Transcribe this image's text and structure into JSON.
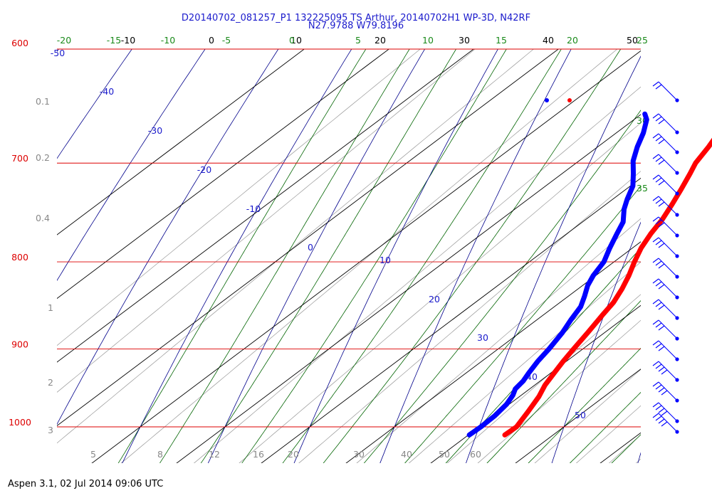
{
  "title_line1": "D20140702_081257_P1 132225095 TS Arthur, 20140702H1 WP-3D, N42RF",
  "title_line2": "N27.9788 W79.8196",
  "footer": "Aspen 3.1, 02 Jul 2014  09:06 UTC",
  "colors": {
    "isobar": "#dd0000",
    "isotherm": "#000000",
    "dry_adiabat": "#00008b",
    "moist_adiabat": "#006400",
    "mixing_ratio": "#9a9a9a",
    "dewpoint": "#0000ff",
    "temperature": "#ff0000",
    "isotherm_label": "#000000",
    "dry_label": "#1a1acc",
    "moist_label": "#1a8a1a",
    "mixing_label": "#888888"
  },
  "chart_data": {
    "type": "skew-t",
    "pressure_range_hpa": [
      600,
      1050
    ],
    "isobars_hpa": [
      600,
      700,
      800,
      900,
      1000
    ],
    "isobar_labels": [
      "600",
      "700",
      "800",
      "900",
      "1000"
    ],
    "isotherm_top_labels": [
      "-10",
      "0",
      "10",
      "20",
      "30",
      "40",
      "50"
    ],
    "moist_top_labels": [
      "-20",
      "-15",
      "-10",
      "-5",
      "0",
      "5",
      "10",
      "15",
      "20",
      "25"
    ],
    "moist_right_labels": [
      "30",
      "35"
    ],
    "dry_adiabat_labels": [
      "-50",
      "-40",
      "-30",
      "-20",
      "-10",
      "0",
      "10",
      "20",
      "30",
      "40",
      "50"
    ],
    "mixing_ratio_bottom_labels": [
      "5",
      "8",
      "12",
      "16",
      "20",
      "30",
      "40",
      "50",
      "60"
    ],
    "mixing_ratio_left_labels": [
      "0.1",
      "0.2",
      "0.4",
      "1",
      "2",
      "3"
    ],
    "temperature": [
      {
        "p": 1011,
        "t": 24.3
      },
      {
        "p": 1000,
        "t": 24.4
      },
      {
        "p": 980,
        "t": 23.4
      },
      {
        "p": 960,
        "t": 22.3
      },
      {
        "p": 945,
        "t": 21.2
      },
      {
        "p": 930,
        "t": 20.4
      },
      {
        "p": 915,
        "t": 19.6
      },
      {
        "p": 900,
        "t": 18.9
      },
      {
        "p": 880,
        "t": 18.0
      },
      {
        "p": 860,
        "t": 17.0
      },
      {
        "p": 845,
        "t": 16.3
      },
      {
        "p": 830,
        "t": 15.2
      },
      {
        "p": 815,
        "t": 13.9
      },
      {
        "p": 800,
        "t": 12.4
      },
      {
        "p": 785,
        "t": 11.0
      },
      {
        "p": 770,
        "t": 9.9
      },
      {
        "p": 755,
        "t": 9.0
      },
      {
        "p": 740,
        "t": 7.8
      },
      {
        "p": 725,
        "t": 6.5
      },
      {
        "p": 710,
        "t": 5.1
      },
      {
        "p": 700,
        "t": 4.1
      },
      {
        "p": 685,
        "t": 3.1
      },
      {
        "p": 670,
        "t": 1.9
      },
      {
        "p": 655,
        "t": 0.6
      }
    ],
    "dewpoint": [
      {
        "p": 1011,
        "t": 20.1
      },
      {
        "p": 1000,
        "t": 20.2
      },
      {
        "p": 985,
        "t": 20.1
      },
      {
        "p": 970,
        "t": 19.7
      },
      {
        "p": 958,
        "t": 19.0
      },
      {
        "p": 950,
        "t": 18.3
      },
      {
        "p": 940,
        "t": 18.0
      },
      {
        "p": 930,
        "t": 17.4
      },
      {
        "p": 915,
        "t": 16.6
      },
      {
        "p": 900,
        "t": 16.0
      },
      {
        "p": 880,
        "t": 15.0
      },
      {
        "p": 865,
        "t": 14.0
      },
      {
        "p": 850,
        "t": 13.1
      },
      {
        "p": 838,
        "t": 11.9
      },
      {
        "p": 826,
        "t": 10.6
      },
      {
        "p": 815,
        "t": 9.7
      },
      {
        "p": 800,
        "t": 8.8
      },
      {
        "p": 785,
        "t": 7.3
      },
      {
        "p": 770,
        "t": 5.9
      },
      {
        "p": 758,
        "t": 4.8
      },
      {
        "p": 745,
        "t": 2.9
      },
      {
        "p": 735,
        "t": 1.7
      },
      {
        "p": 722,
        "t": 0.3
      },
      {
        "p": 710,
        "t": -1.6
      },
      {
        "p": 698,
        "t": -3.6
      },
      {
        "p": 685,
        "t": -5.3
      },
      {
        "p": 672,
        "t": -6.8
      },
      {
        "p": 660,
        "t": -8.5
      },
      {
        "p": 655,
        "t": -9.6
      }
    ],
    "wind_barbs_hpa": [
      660,
      680,
      693,
      704,
      715,
      728,
      740,
      750,
      763,
      775,
      790,
      805,
      820,
      835,
      850,
      870,
      890,
      915,
      935,
      960,
      980,
      1000
    ]
  }
}
